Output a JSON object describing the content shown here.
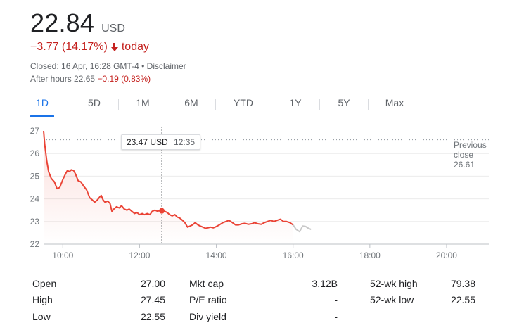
{
  "quote": {
    "price": "22.84",
    "currency": "USD",
    "change": "−3.77 (14.17%)",
    "change_period": "today",
    "closed_text": "Closed: 16 Apr, 16:28 GMT-4",
    "separator": "•",
    "disclaimer": "Disclaimer",
    "after_hours_label": "After hours",
    "after_hours_price": "22.65",
    "after_hours_change": "−0.19 (0.83%)",
    "down_color": "#c5221f"
  },
  "tabs": [
    {
      "label": "1D",
      "active": true
    },
    {
      "label": "5D",
      "active": false
    },
    {
      "label": "1M",
      "active": false
    },
    {
      "label": "6M",
      "active": false
    },
    {
      "label": "YTD",
      "active": false
    },
    {
      "label": "1Y",
      "active": false
    },
    {
      "label": "5Y",
      "active": false
    },
    {
      "label": "Max",
      "active": false
    }
  ],
  "tooltip": {
    "price": "23.47 USD",
    "time": "12:35"
  },
  "previous_close": {
    "line1": "Previous",
    "line2": "close",
    "value": "26.61"
  },
  "chart_data": {
    "type": "line",
    "y_ticks": [
      "27",
      "26",
      "25",
      "24",
      "23",
      "22"
    ],
    "x_ticks": [
      "10:00",
      "12:00",
      "14:00",
      "16:00",
      "18:00",
      "20:00"
    ],
    "ylim": [
      22,
      27
    ],
    "xlim_hours": [
      9.5,
      21.1
    ],
    "previous_close": 26.61,
    "hover_point": {
      "x": 12.58,
      "y": 23.47
    },
    "series": [
      {
        "values": [
          [
            9.5,
            27.0
          ],
          [
            9.53,
            26.4
          ],
          [
            9.58,
            25.7
          ],
          [
            9.63,
            25.2
          ],
          [
            9.7,
            24.9
          ],
          [
            9.78,
            24.75
          ],
          [
            9.85,
            24.45
          ],
          [
            9.92,
            24.5
          ],
          [
            10.0,
            24.85
          ],
          [
            10.07,
            25.1
          ],
          [
            10.12,
            25.25
          ],
          [
            10.17,
            25.2
          ],
          [
            10.22,
            25.28
          ],
          [
            10.28,
            25.25
          ],
          [
            10.33,
            25.1
          ],
          [
            10.4,
            24.8
          ],
          [
            10.47,
            24.75
          ],
          [
            10.55,
            24.55
          ],
          [
            10.62,
            24.4
          ],
          [
            10.7,
            24.05
          ],
          [
            10.77,
            23.95
          ],
          [
            10.83,
            23.85
          ],
          [
            10.9,
            23.95
          ],
          [
            10.97,
            24.1
          ],
          [
            11.0,
            24.15
          ],
          [
            11.05,
            23.95
          ],
          [
            11.1,
            23.85
          ],
          [
            11.17,
            23.9
          ],
          [
            11.23,
            23.8
          ],
          [
            11.28,
            23.45
          ],
          [
            11.33,
            23.55
          ],
          [
            11.4,
            23.65
          ],
          [
            11.47,
            23.6
          ],
          [
            11.53,
            23.7
          ],
          [
            11.6,
            23.55
          ],
          [
            11.67,
            23.5
          ],
          [
            11.73,
            23.55
          ],
          [
            11.8,
            23.45
          ],
          [
            11.87,
            23.35
          ],
          [
            11.93,
            23.4
          ],
          [
            12.0,
            23.3
          ],
          [
            12.07,
            23.35
          ],
          [
            12.13,
            23.3
          ],
          [
            12.2,
            23.35
          ],
          [
            12.27,
            23.3
          ],
          [
            12.33,
            23.45
          ],
          [
            12.4,
            23.5
          ],
          [
            12.47,
            23.45
          ],
          [
            12.53,
            23.5
          ],
          [
            12.58,
            23.47
          ],
          [
            12.65,
            23.45
          ],
          [
            12.72,
            23.4
          ],
          [
            12.78,
            23.3
          ],
          [
            12.85,
            23.25
          ],
          [
            12.92,
            23.3
          ],
          [
            12.98,
            23.2
          ],
          [
            13.05,
            23.15
          ],
          [
            13.12,
            23.05
          ],
          [
            13.18,
            22.95
          ],
          [
            13.25,
            22.75
          ],
          [
            13.32,
            22.8
          ],
          [
            13.38,
            22.85
          ],
          [
            13.45,
            22.95
          ],
          [
            13.52,
            22.85
          ],
          [
            13.58,
            22.8
          ],
          [
            13.65,
            22.75
          ],
          [
            13.72,
            22.7
          ],
          [
            13.78,
            22.72
          ],
          [
            13.85,
            22.75
          ],
          [
            13.92,
            22.72
          ],
          [
            14.0,
            22.78
          ],
          [
            14.08,
            22.85
          ],
          [
            14.17,
            22.95
          ],
          [
            14.25,
            23.0
          ],
          [
            14.33,
            23.05
          ],
          [
            14.42,
            22.95
          ],
          [
            14.5,
            22.85
          ],
          [
            14.58,
            22.85
          ],
          [
            14.67,
            22.9
          ],
          [
            14.75,
            22.92
          ],
          [
            14.83,
            22.88
          ],
          [
            14.92,
            22.9
          ],
          [
            15.0,
            22.95
          ],
          [
            15.08,
            22.9
          ],
          [
            15.17,
            22.88
          ],
          [
            15.25,
            22.95
          ],
          [
            15.33,
            23.0
          ],
          [
            15.42,
            23.05
          ],
          [
            15.5,
            23.0
          ],
          [
            15.58,
            23.05
          ],
          [
            15.67,
            23.1
          ],
          [
            15.75,
            23.0
          ],
          [
            15.83,
            23.0
          ],
          [
            15.92,
            22.95
          ],
          [
            16.0,
            22.85
          ]
        ]
      },
      {
        "values": [
          [
            16.0,
            22.85
          ],
          [
            16.08,
            22.65
          ],
          [
            16.17,
            22.55
          ],
          [
            16.25,
            22.8
          ],
          [
            16.33,
            22.78
          ],
          [
            16.4,
            22.7
          ],
          [
            16.47,
            22.65
          ]
        ]
      }
    ]
  },
  "stats": [
    {
      "l1": "Open",
      "v1": "27.00",
      "l2": "Mkt cap",
      "v2": "3.12B",
      "l3": "52-wk high",
      "v3": "79.38"
    },
    {
      "l1": "High",
      "v1": "27.45",
      "l2": "P/E ratio",
      "v2": "-",
      "l3": "52-wk low",
      "v3": "22.55"
    },
    {
      "l1": "Low",
      "v1": "22.55",
      "l2": "Div yield",
      "v2": "-",
      "l3": "",
      "v3": ""
    }
  ]
}
